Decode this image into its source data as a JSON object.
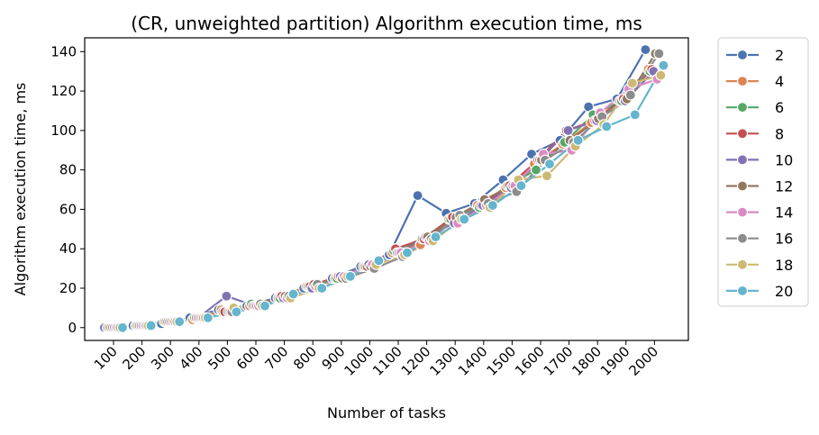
{
  "chart_data": {
    "type": "line",
    "title": "(CR, unweighted partition) Algorithm execution time, ms",
    "xlabel": "Number of tasks",
    "ylabel": "Algorithm execution time, ms",
    "categories": [
      "100",
      "200",
      "300",
      "400",
      "500",
      "600",
      "700",
      "800",
      "900",
      "1000",
      "1100",
      "1200",
      "1300",
      "1400",
      "1500",
      "1600",
      "1700",
      "1800",
      "1900",
      "2000"
    ],
    "ylim": [
      -6.5,
      147
    ],
    "yticks": [
      0,
      20,
      40,
      60,
      80,
      100,
      120,
      140
    ],
    "grid": false,
    "legend_position": "outside-right",
    "series": [
      {
        "name": "2",
        "color": "#4c72b0",
        "values": [
          0,
          1,
          2,
          5,
          9,
          11,
          15,
          20,
          25,
          31,
          37,
          67,
          58,
          63,
          75,
          88,
          95,
          112,
          116,
          141
        ]
      },
      {
        "name": "4",
        "color": "#dd8452",
        "values": [
          0,
          1,
          3,
          4,
          9,
          11,
          15,
          21,
          25,
          31,
          38,
          42,
          55,
          62,
          71,
          83,
          93,
          104,
          115,
          131
        ]
      },
      {
        "name": "6",
        "color": "#55a868",
        "values": [
          0,
          1,
          3,
          5,
          8,
          12,
          15,
          21,
          25,
          31,
          39,
          45,
          55,
          61,
          72,
          80,
          94,
          108,
          115,
          130
        ]
      },
      {
        "name": "8",
        "color": "#c44e52",
        "values": [
          0,
          1,
          3,
          5,
          8,
          11,
          16,
          21,
          26,
          31,
          40,
          45,
          56,
          62,
          72,
          85,
          100,
          105,
          116,
          131
        ]
      },
      {
        "name": "10",
        "color": "#8172b3",
        "values": [
          0,
          1,
          3,
          5,
          16,
          11,
          15,
          20,
          26,
          32,
          38,
          46,
          53,
          62,
          71,
          85,
          100,
          105,
          115,
          130
        ]
      },
      {
        "name": "12",
        "color": "#937860",
        "values": [
          0,
          1,
          3,
          5,
          8,
          11,
          16,
          22,
          25,
          31,
          38,
          46,
          56,
          65,
          72,
          85,
          95,
          106,
          116,
          139
        ]
      },
      {
        "name": "14",
        "color": "#da8bc3",
        "values": [
          0,
          1,
          3,
          5,
          8,
          11,
          15,
          21,
          26,
          32,
          38,
          44,
          53,
          62,
          72,
          88,
          90,
          109,
          121,
          126
        ]
      },
      {
        "name": "16",
        "color": "#8c8c8c",
        "values": [
          0,
          1,
          3,
          5,
          8,
          12,
          16,
          22,
          25,
          30,
          36,
          45,
          57,
          63,
          69,
          85,
          94,
          107,
          118,
          139
        ]
      },
      {
        "name": "18",
        "color": "#ccb974",
        "values": [
          0,
          1,
          3,
          5,
          10,
          11,
          15,
          20,
          26,
          32,
          37,
          44,
          55,
          61,
          75,
          77,
          92,
          103,
          124,
          128
        ]
      },
      {
        "name": "20",
        "color": "#64b5cd",
        "values": [
          0,
          1,
          3,
          5,
          8,
          11,
          17,
          20,
          26,
          34,
          38,
          46,
          55,
          62,
          72,
          83,
          95,
          102,
          108,
          133
        ]
      }
    ]
  }
}
